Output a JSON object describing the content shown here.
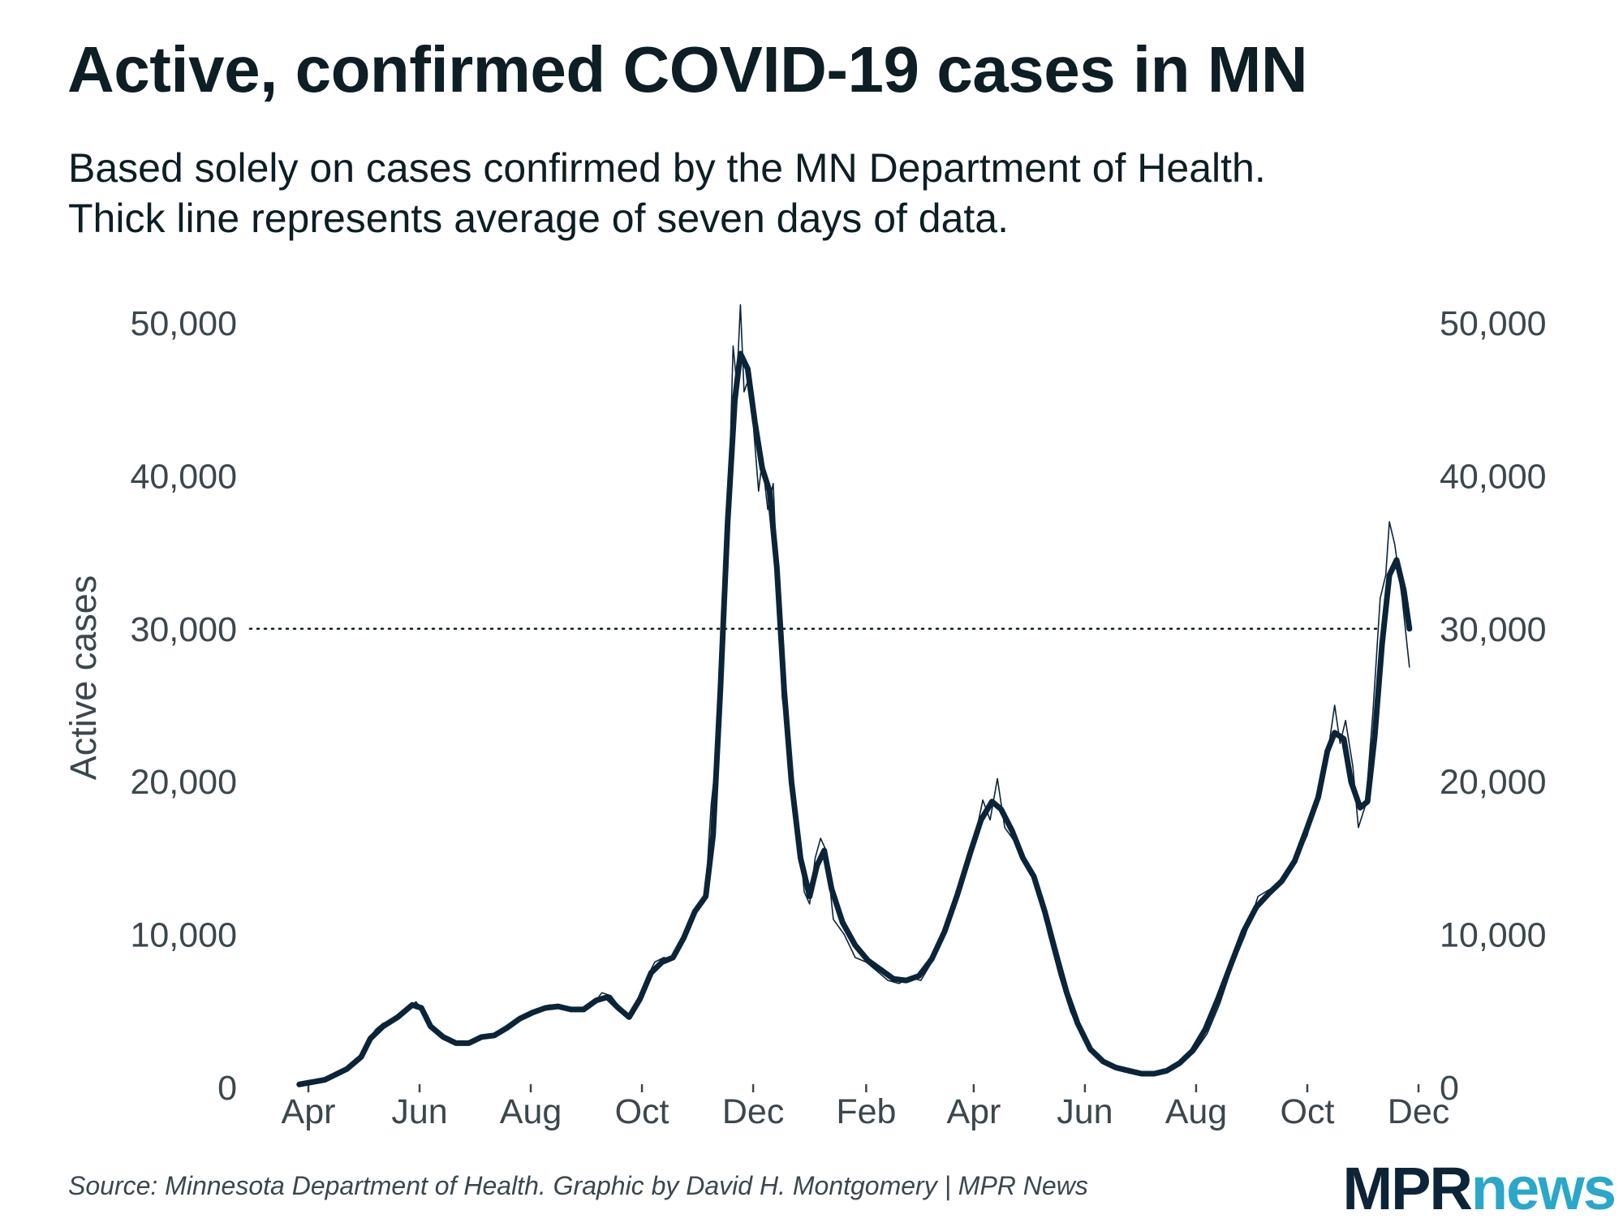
{
  "title": "Active, confirmed COVID-19 cases in MN",
  "subtitle_lines": [
    "Based solely on cases confirmed by the MN Department of Health.",
    "Thick line represents average of seven days of data."
  ],
  "source": "Source: Minnesota Department of Health. Graphic by David H. Montgomery | MPR News",
  "logo": {
    "part1": "MPR",
    "part2": "news"
  },
  "colors": {
    "line": "#0b2438",
    "text": "#3b474d",
    "title": "#0d1e24",
    "logo_mpr": "#0d2438",
    "logo_news": "#2aa7c9"
  },
  "chart_data": {
    "type": "line",
    "ylabel": "Active cases",
    "xlabel": "",
    "ylim": [
      0,
      50000
    ],
    "y_ticks": [
      0,
      10000,
      20000,
      30000,
      40000,
      50000
    ],
    "y_tick_labels": [
      "0",
      "10,000",
      "20,000",
      "30,000",
      "40,000",
      "50,000"
    ],
    "y_axis_sides": "left and right",
    "reference_line": {
      "y": 30000,
      "style": "dotted"
    },
    "x_ticks": [
      {
        "date": "2020-04-01",
        "label": "Apr"
      },
      {
        "date": "2020-06-01",
        "label": "Jun"
      },
      {
        "date": "2020-08-01",
        "label": "Aug"
      },
      {
        "date": "2020-10-01",
        "label": "Oct"
      },
      {
        "date": "2020-12-01",
        "label": "Dec"
      },
      {
        "date": "2021-02-01",
        "label": "Feb"
      },
      {
        "date": "2021-04-01",
        "label": "Apr"
      },
      {
        "date": "2021-06-01",
        "label": "Jun"
      },
      {
        "date": "2021-08-01",
        "label": "Aug"
      },
      {
        "date": "2021-10-01",
        "label": "Oct"
      },
      {
        "date": "2021-12-01",
        "label": "Dec"
      }
    ],
    "grid": false,
    "series": [
      {
        "style": "thin daily",
        "points": [
          [
            "2020-03-27",
            200
          ],
          [
            "2020-04-10",
            500
          ],
          [
            "2020-04-20",
            1000
          ],
          [
            "2020-04-28",
            1800
          ],
          [
            "2020-05-03",
            3000
          ],
          [
            "2020-05-08",
            3800
          ],
          [
            "2020-05-12",
            4200
          ],
          [
            "2020-05-18",
            4400
          ],
          [
            "2020-05-24",
            5000
          ],
          [
            "2020-05-30",
            5600
          ],
          [
            "2020-06-02",
            5200
          ],
          [
            "2020-06-06",
            4000
          ],
          [
            "2020-06-12",
            3400
          ],
          [
            "2020-06-18",
            3000
          ],
          [
            "2020-06-24",
            2800
          ],
          [
            "2020-06-30",
            3000
          ],
          [
            "2020-07-06",
            3400
          ],
          [
            "2020-07-12",
            3300
          ],
          [
            "2020-07-18",
            3800
          ],
          [
            "2020-07-24",
            4500
          ],
          [
            "2020-07-30",
            4800
          ],
          [
            "2020-08-05",
            5000
          ],
          [
            "2020-08-11",
            5400
          ],
          [
            "2020-08-17",
            5300
          ],
          [
            "2020-08-23",
            5200
          ],
          [
            "2020-08-29",
            5000
          ],
          [
            "2020-09-04",
            5400
          ],
          [
            "2020-09-09",
            6200
          ],
          [
            "2020-09-14",
            6000
          ],
          [
            "2020-09-19",
            5200
          ],
          [
            "2020-09-23",
            4500
          ],
          [
            "2020-09-27",
            5300
          ],
          [
            "2020-10-03",
            7000
          ],
          [
            "2020-10-08",
            8200
          ],
          [
            "2020-10-13",
            8500
          ],
          [
            "2020-10-18",
            8400
          ],
          [
            "2020-10-23",
            9500
          ],
          [
            "2020-10-28",
            11000
          ],
          [
            "2020-11-02",
            12000
          ],
          [
            "2020-11-05",
            12800
          ],
          [
            "2020-11-08",
            18500
          ],
          [
            "2020-11-12",
            23000
          ],
          [
            "2020-11-15",
            32000
          ],
          [
            "2020-11-18",
            40000
          ],
          [
            "2020-11-20",
            48500
          ],
          [
            "2020-11-22",
            46000
          ],
          [
            "2020-11-24",
            51200
          ],
          [
            "2020-11-26",
            45500
          ],
          [
            "2020-11-29",
            46500
          ],
          [
            "2020-12-02",
            42000
          ],
          [
            "2020-12-04",
            39000
          ],
          [
            "2020-12-06",
            41000
          ],
          [
            "2020-12-09",
            37800
          ],
          [
            "2020-12-12",
            39500
          ],
          [
            "2020-12-14",
            34000
          ],
          [
            "2020-12-17",
            25500
          ],
          [
            "2020-12-21",
            22000
          ],
          [
            "2020-12-25",
            17800
          ],
          [
            "2020-12-29",
            12800
          ],
          [
            "2021-01-01",
            12000
          ],
          [
            "2021-01-04",
            15000
          ],
          [
            "2021-01-07",
            16300
          ],
          [
            "2021-01-10",
            15500
          ],
          [
            "2021-01-14",
            11000
          ],
          [
            "2021-01-20",
            10000
          ],
          [
            "2021-01-26",
            8500
          ],
          [
            "2021-02-01",
            8200
          ],
          [
            "2021-02-07",
            7600
          ],
          [
            "2021-02-13",
            7000
          ],
          [
            "2021-02-19",
            6800
          ],
          [
            "2021-02-25",
            7200
          ],
          [
            "2021-03-03",
            7000
          ],
          [
            "2021-03-09",
            8200
          ],
          [
            "2021-03-15",
            10000
          ],
          [
            "2021-03-21",
            12000
          ],
          [
            "2021-03-27",
            14500
          ],
          [
            "2021-04-02",
            16500
          ],
          [
            "2021-04-06",
            18800
          ],
          [
            "2021-04-10",
            17500
          ],
          [
            "2021-04-14",
            20200
          ],
          [
            "2021-04-18",
            17000
          ],
          [
            "2021-04-24",
            16000
          ],
          [
            "2021-04-30",
            14500
          ],
          [
            "2021-05-06",
            13200
          ],
          [
            "2021-05-12",
            10000
          ],
          [
            "2021-05-18",
            7300
          ],
          [
            "2021-05-24",
            5000
          ],
          [
            "2021-05-30",
            3400
          ],
          [
            "2021-06-05",
            2300
          ],
          [
            "2021-06-12",
            1600
          ],
          [
            "2021-06-19",
            1300
          ],
          [
            "2021-06-26",
            1000
          ],
          [
            "2021-07-03",
            900
          ],
          [
            "2021-07-10",
            950
          ],
          [
            "2021-07-17",
            1200
          ],
          [
            "2021-07-24",
            1700
          ],
          [
            "2021-07-31",
            2300
          ],
          [
            "2021-08-07",
            3500
          ],
          [
            "2021-08-14",
            5500
          ],
          [
            "2021-08-21",
            8000
          ],
          [
            "2021-08-28",
            10000
          ],
          [
            "2021-09-04",
            12500
          ],
          [
            "2021-09-11",
            13000
          ],
          [
            "2021-09-18",
            13500
          ],
          [
            "2021-09-25",
            15000
          ],
          [
            "2021-10-01",
            16500
          ],
          [
            "2021-10-05",
            18500
          ],
          [
            "2021-10-09",
            20000
          ],
          [
            "2021-10-13",
            22500
          ],
          [
            "2021-10-16",
            25000
          ],
          [
            "2021-10-19",
            22500
          ],
          [
            "2021-10-22",
            24000
          ],
          [
            "2021-10-26",
            21000
          ],
          [
            "2021-10-29",
            17000
          ],
          [
            "2021-11-02",
            18500
          ],
          [
            "2021-11-06",
            24500
          ],
          [
            "2021-11-10",
            32000
          ],
          [
            "2021-11-13",
            33500
          ],
          [
            "2021-11-15",
            37000
          ],
          [
            "2021-11-18",
            35500
          ],
          [
            "2021-11-22",
            32000
          ],
          [
            "2021-11-26",
            27500
          ]
        ]
      },
      {
        "style": "thick 7-day average",
        "points": [
          [
            "2020-03-27",
            200
          ],
          [
            "2020-04-10",
            500
          ],
          [
            "2020-04-22",
            1200
          ],
          [
            "2020-04-30",
            2000
          ],
          [
            "2020-05-05",
            3200
          ],
          [
            "2020-05-12",
            4000
          ],
          [
            "2020-05-20",
            4600
          ],
          [
            "2020-05-28",
            5400
          ],
          [
            "2020-06-02",
            5200
          ],
          [
            "2020-06-07",
            4000
          ],
          [
            "2020-06-14",
            3300
          ],
          [
            "2020-06-21",
            2900
          ],
          [
            "2020-06-28",
            2900
          ],
          [
            "2020-07-05",
            3300
          ],
          [
            "2020-07-12",
            3400
          ],
          [
            "2020-07-19",
            3900
          ],
          [
            "2020-07-26",
            4500
          ],
          [
            "2020-08-02",
            4900
          ],
          [
            "2020-08-09",
            5200
          ],
          [
            "2020-08-16",
            5300
          ],
          [
            "2020-08-23",
            5100
          ],
          [
            "2020-08-30",
            5100
          ],
          [
            "2020-09-06",
            5700
          ],
          [
            "2020-09-12",
            5900
          ],
          [
            "2020-09-18",
            5200
          ],
          [
            "2020-09-24",
            4600
          ],
          [
            "2020-09-30",
            5800
          ],
          [
            "2020-10-06",
            7500
          ],
          [
            "2020-10-12",
            8200
          ],
          [
            "2020-10-18",
            8500
          ],
          [
            "2020-10-24",
            9800
          ],
          [
            "2020-10-30",
            11500
          ],
          [
            "2020-11-05",
            12500
          ],
          [
            "2020-11-09",
            16500
          ],
          [
            "2020-11-13",
            26000
          ],
          [
            "2020-11-17",
            37000
          ],
          [
            "2020-11-21",
            45000
          ],
          [
            "2020-11-24",
            48000
          ],
          [
            "2020-11-28",
            47000
          ],
          [
            "2020-12-02",
            43500
          ],
          [
            "2020-12-06",
            40500
          ],
          [
            "2020-12-10",
            39000
          ],
          [
            "2020-12-14",
            34000
          ],
          [
            "2020-12-18",
            26000
          ],
          [
            "2020-12-22",
            20000
          ],
          [
            "2020-12-27",
            15000
          ],
          [
            "2021-01-01",
            12500
          ],
          [
            "2021-01-05",
            14500
          ],
          [
            "2021-01-09",
            15500
          ],
          [
            "2021-01-13",
            13000
          ],
          [
            "2021-01-19",
            10800
          ],
          [
            "2021-01-26",
            9300
          ],
          [
            "2021-02-02",
            8300
          ],
          [
            "2021-02-09",
            7700
          ],
          [
            "2021-02-16",
            7100
          ],
          [
            "2021-02-23",
            7000
          ],
          [
            "2021-03-02",
            7300
          ],
          [
            "2021-03-09",
            8400
          ],
          [
            "2021-03-16",
            10200
          ],
          [
            "2021-03-23",
            12600
          ],
          [
            "2021-03-30",
            15300
          ],
          [
            "2021-04-05",
            17500
          ],
          [
            "2021-04-11",
            18700
          ],
          [
            "2021-04-16",
            18200
          ],
          [
            "2021-04-22",
            16800
          ],
          [
            "2021-04-28",
            15000
          ],
          [
            "2021-05-04",
            13800
          ],
          [
            "2021-05-10",
            11500
          ],
          [
            "2021-05-16",
            8800
          ],
          [
            "2021-05-22",
            6200
          ],
          [
            "2021-05-28",
            4200
          ],
          [
            "2021-06-04",
            2500
          ],
          [
            "2021-06-11",
            1700
          ],
          [
            "2021-06-18",
            1300
          ],
          [
            "2021-06-25",
            1100
          ],
          [
            "2021-07-02",
            900
          ],
          [
            "2021-07-09",
            900
          ],
          [
            "2021-07-16",
            1100
          ],
          [
            "2021-07-23",
            1600
          ],
          [
            "2021-07-30",
            2400
          ],
          [
            "2021-08-06",
            3800
          ],
          [
            "2021-08-13",
            5800
          ],
          [
            "2021-08-20",
            8000
          ],
          [
            "2021-08-27",
            10200
          ],
          [
            "2021-09-03",
            11800
          ],
          [
            "2021-09-10",
            12700
          ],
          [
            "2021-09-17",
            13500
          ],
          [
            "2021-09-24",
            14800
          ],
          [
            "2021-10-01",
            17000
          ],
          [
            "2021-10-07",
            19000
          ],
          [
            "2021-10-12",
            22000
          ],
          [
            "2021-10-16",
            23200
          ],
          [
            "2021-10-21",
            22800
          ],
          [
            "2021-10-25",
            20000
          ],
          [
            "2021-10-30",
            18300
          ],
          [
            "2021-11-03",
            18700
          ],
          [
            "2021-11-07",
            23000
          ],
          [
            "2021-11-11",
            29000
          ],
          [
            "2021-11-15",
            33500
          ],
          [
            "2021-11-19",
            34500
          ],
          [
            "2021-11-23",
            32500
          ],
          [
            "2021-11-26",
            30000
          ]
        ]
      }
    ]
  }
}
